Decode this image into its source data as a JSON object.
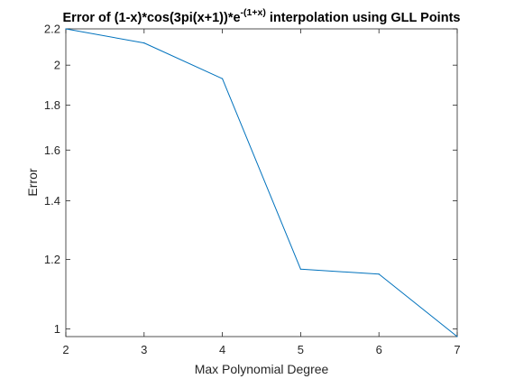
{
  "chart_data": {
    "type": "line",
    "title": {
      "prefix": "Error of (1-x)*cos(3pi(x+1))*e",
      "superscript": "-(1+x)",
      "suffix": " interpolation using GLL Points"
    },
    "xlabel": "Max Polynomial Degree",
    "ylabel": "Error",
    "xlim": [
      2,
      7
    ],
    "ylim": [
      0.98,
      2.2
    ],
    "y_scale": "log",
    "grid": false,
    "x_ticks": [
      2,
      3,
      4,
      5,
      6,
      7
    ],
    "x_tick_labels": [
      "2",
      "3",
      "4",
      "5",
      "6",
      "7"
    ],
    "y_ticks": [
      1,
      1.2,
      1.4,
      1.6,
      1.8,
      2,
      2.2
    ],
    "y_tick_labels": [
      "1",
      "1.2",
      "1.4",
      "1.6",
      "1.8",
      "2",
      "2.2"
    ],
    "series": [
      {
        "color": "#0072BD",
        "x": [
          2,
          3,
          4,
          5,
          6,
          7
        ],
        "y": [
          2.2,
          2.12,
          1.93,
          1.17,
          1.155,
          0.98
        ]
      }
    ]
  }
}
